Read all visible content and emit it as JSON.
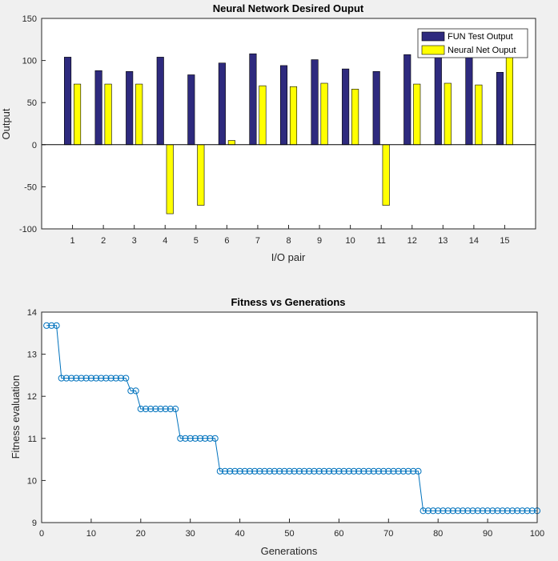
{
  "chart_data": [
    {
      "type": "bar",
      "title": "Neural Network Desired Ouput",
      "xlabel": "I/O pair",
      "ylabel": "Output",
      "categories": [
        "1",
        "2",
        "3",
        "4",
        "5",
        "6",
        "7",
        "8",
        "9",
        "10",
        "11",
        "12",
        "13",
        "14",
        "15"
      ],
      "ylim": [
        -100,
        150
      ],
      "yticks": [
        -100,
        -50,
        0,
        50,
        100,
        150
      ],
      "legend_position": "top-right",
      "series": [
        {
          "name": "FUN Test Output",
          "color": "#2e2a7e",
          "values": [
            104,
            88,
            87,
            104,
            83,
            97,
            108,
            94,
            101,
            90,
            87,
            107,
            104,
            104,
            86
          ]
        },
        {
          "name": "Neural Net Ouput",
          "color": "#ffff00",
          "values": [
            72,
            72,
            72,
            -82,
            -72,
            5,
            70,
            69,
            73,
            66,
            -72,
            72,
            73,
            71,
            104
          ]
        }
      ]
    },
    {
      "type": "line",
      "title": "Fitness vs Generations",
      "xlabel": "Generations",
      "ylabel": "Fitness evaluation",
      "xlim": [
        0,
        100
      ],
      "ylim": [
        9,
        14
      ],
      "xticks": [
        0,
        10,
        20,
        30,
        40,
        50,
        60,
        70,
        80,
        90,
        100
      ],
      "yticks": [
        9,
        10,
        11,
        12,
        13,
        14
      ],
      "marker": "circle",
      "color": "#0072bd",
      "segments": [
        {
          "from": 1,
          "to": 3,
          "value": 13.68
        },
        {
          "from": 4,
          "to": 17,
          "value": 12.43
        },
        {
          "from": 18,
          "to": 19,
          "value": 12.13
        },
        {
          "from": 20,
          "to": 27,
          "value": 11.7
        },
        {
          "from": 28,
          "to": 35,
          "value": 11.0
        },
        {
          "from": 36,
          "to": 76,
          "value": 10.22
        },
        {
          "from": 77,
          "to": 100,
          "value": 9.28
        }
      ]
    }
  ]
}
